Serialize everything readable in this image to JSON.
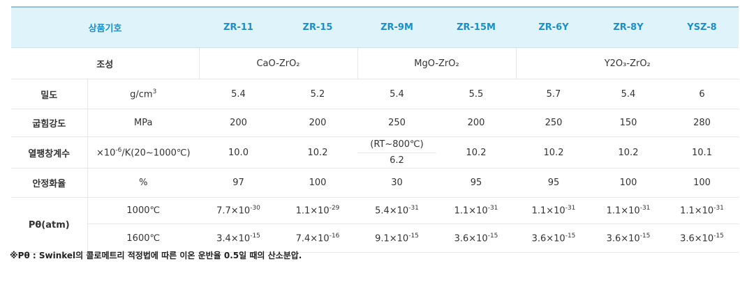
{
  "table": {
    "header": {
      "label": "상품기호",
      "products": [
        "ZR-11",
        "ZR-15",
        "ZR-9M",
        "ZR-15M",
        "ZR-6Y",
        "ZR-8Y",
        "YSZ-8"
      ]
    },
    "composition": {
      "label": "조성",
      "groups": [
        "CaO-ZrO₂",
        "MgO-ZrO₂",
        "Y2O₃-ZrO₂"
      ]
    },
    "density": {
      "label": "밀도",
      "unit_base": "g/cm",
      "unit_exp": "3",
      "values": [
        "5.4",
        "5.2",
        "5.4",
        "5.5",
        "5.7",
        "5.4",
        "6"
      ]
    },
    "flexural": {
      "label": "굽힘강도",
      "unit": "MPa",
      "values": [
        "200",
        "200",
        "250",
        "200",
        "250",
        "150",
        "280"
      ]
    },
    "thermal": {
      "label": "열팽창계수",
      "unit_pre": "×10",
      "unit_exp": "-6",
      "unit_post": "/K(20~1000℃)",
      "values": [
        "10.0",
        "10.2",
        "",
        "10.2",
        "10.2",
        "10.2",
        "10.1"
      ],
      "zr9m_note": "(RT~800℃)",
      "zr9m_value": "6.2"
    },
    "stabilization": {
      "label": "안정화율",
      "unit": "%",
      "values": [
        "97",
        "100",
        "30",
        "95",
        "95",
        "100",
        "100"
      ]
    },
    "oxygen": {
      "label": "Pθ(atm)",
      "rows": [
        {
          "temp": "1000℃",
          "values": [
            {
              "mant": "7.7×10",
              "exp": "-30"
            },
            {
              "mant": "1.1×10",
              "exp": "-29"
            },
            {
              "mant": "5.4×10",
              "exp": "-31"
            },
            {
              "mant": "1.1×10",
              "exp": "-31"
            },
            {
              "mant": "1.1×10",
              "exp": "-31"
            },
            {
              "mant": "1.1×10",
              "exp": "-31"
            },
            {
              "mant": "1.1×10",
              "exp": "-31"
            }
          ]
        },
        {
          "temp": "1600℃",
          "values": [
            {
              "mant": "3.4×10",
              "exp": "-15"
            },
            {
              "mant": "7.4×10",
              "exp": "-16"
            },
            {
              "mant": "9.1×10",
              "exp": "-15"
            },
            {
              "mant": "3.6×10",
              "exp": "-15"
            },
            {
              "mant": "3.6×10",
              "exp": "-15"
            },
            {
              "mant": "3.6×10",
              "exp": "-15"
            },
            {
              "mant": "3.6×10",
              "exp": "-15"
            }
          ]
        }
      ]
    }
  },
  "footnote": "※Pθ : Swinkel의 콜로메트리 적정법에 따른 이온 운반율 0.5일 때의 산소분압.",
  "colors": {
    "header_bg": "#dff3fb",
    "accent": "#1a8fc9",
    "text": "#333333"
  }
}
